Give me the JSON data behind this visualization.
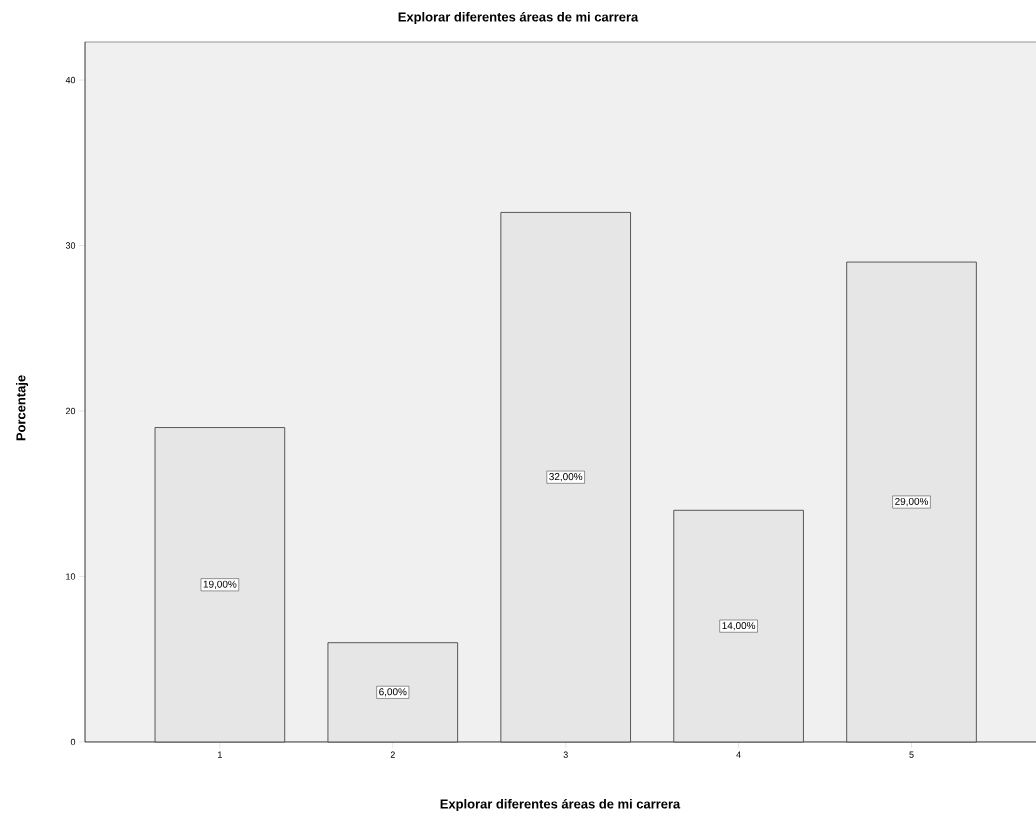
{
  "chart_data": {
    "type": "bar",
    "title": "Explorar diferentes áreas de mi carrera",
    "xlabel": "Explorar diferentes áreas de mi carrera",
    "ylabel": "Porcentaje",
    "categories": [
      "1",
      "2",
      "3",
      "4",
      "5"
    ],
    "values": [
      19,
      6,
      32,
      14,
      29
    ],
    "value_labels": [
      "19,00%",
      "6,00%",
      "32,00%",
      "14,00%",
      "29,00%"
    ],
    "color": "#e6e6e6",
    "ylim": [
      0,
      42.3
    ],
    "yticks": [
      0,
      10,
      20,
      30,
      40
    ],
    "grid": false
  }
}
